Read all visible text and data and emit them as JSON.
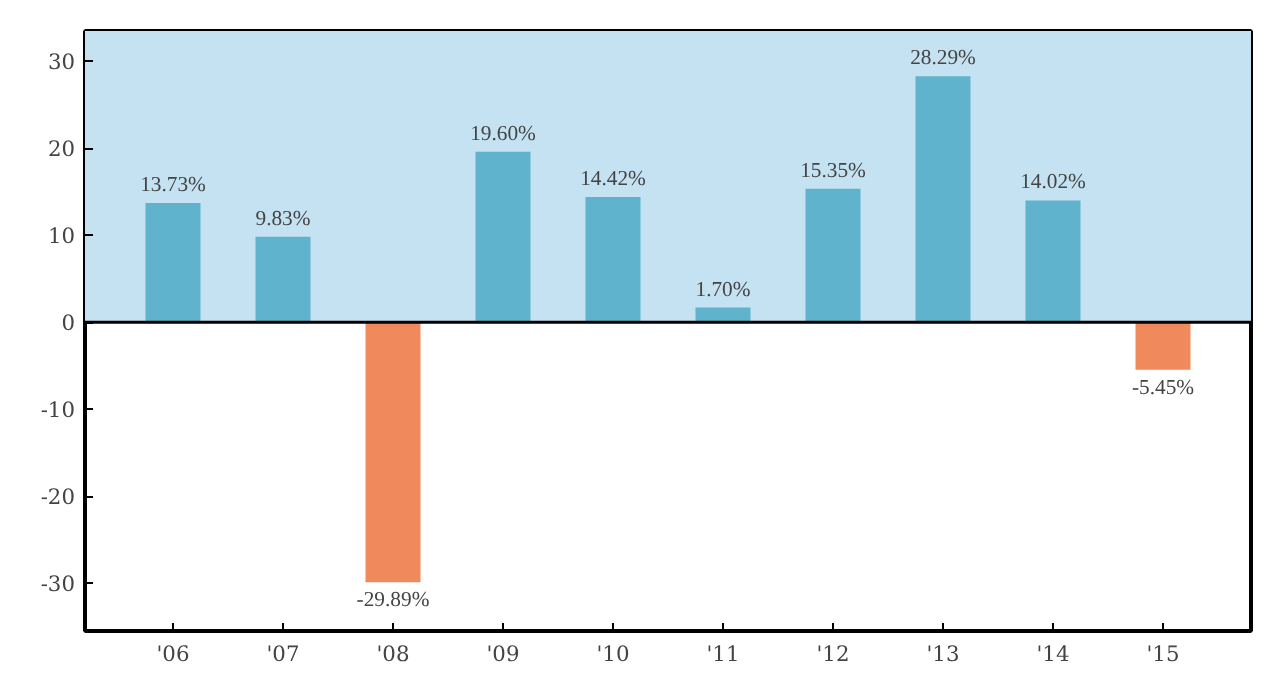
{
  "chart_data": {
    "type": "bar",
    "categories": [
      "'06",
      "'07",
      "'08",
      "'09",
      "'10",
      "'11",
      "'12",
      "'13",
      "'14",
      "'15"
    ],
    "values": [
      13.73,
      9.83,
      -29.89,
      19.6,
      14.42,
      1.7,
      15.35,
      28.29,
      14.02,
      -5.45
    ],
    "colors": [
      "#5fb3cc",
      "#5fb3cc",
      "#f08a5d",
      "#5fb3cc",
      "#5fb3cc",
      "#5fb3cc",
      "#5fb3cc",
      "#5fb3cc",
      "#5fb3cc",
      "#f08a5d"
    ],
    "value_labels": [
      "13.73%",
      "9.83%",
      "-29.89%",
      "19.60%",
      "14.42%",
      "1.70%",
      "15.35%",
      "28.29%",
      "14.02%",
      "-5.45%"
    ],
    "ylim": [
      -35.5,
      33.5
    ],
    "yticks": [
      -30,
      -20,
      -10,
      0,
      10,
      20,
      30
    ],
    "grid": false,
    "ref_lines": [
      {
        "axis": "y",
        "value": 0,
        "color": "#000000"
      }
    ],
    "bands": [
      {
        "axis": "y",
        "from": 0,
        "to": 33.5,
        "color": "#c4e2f2"
      }
    ]
  }
}
